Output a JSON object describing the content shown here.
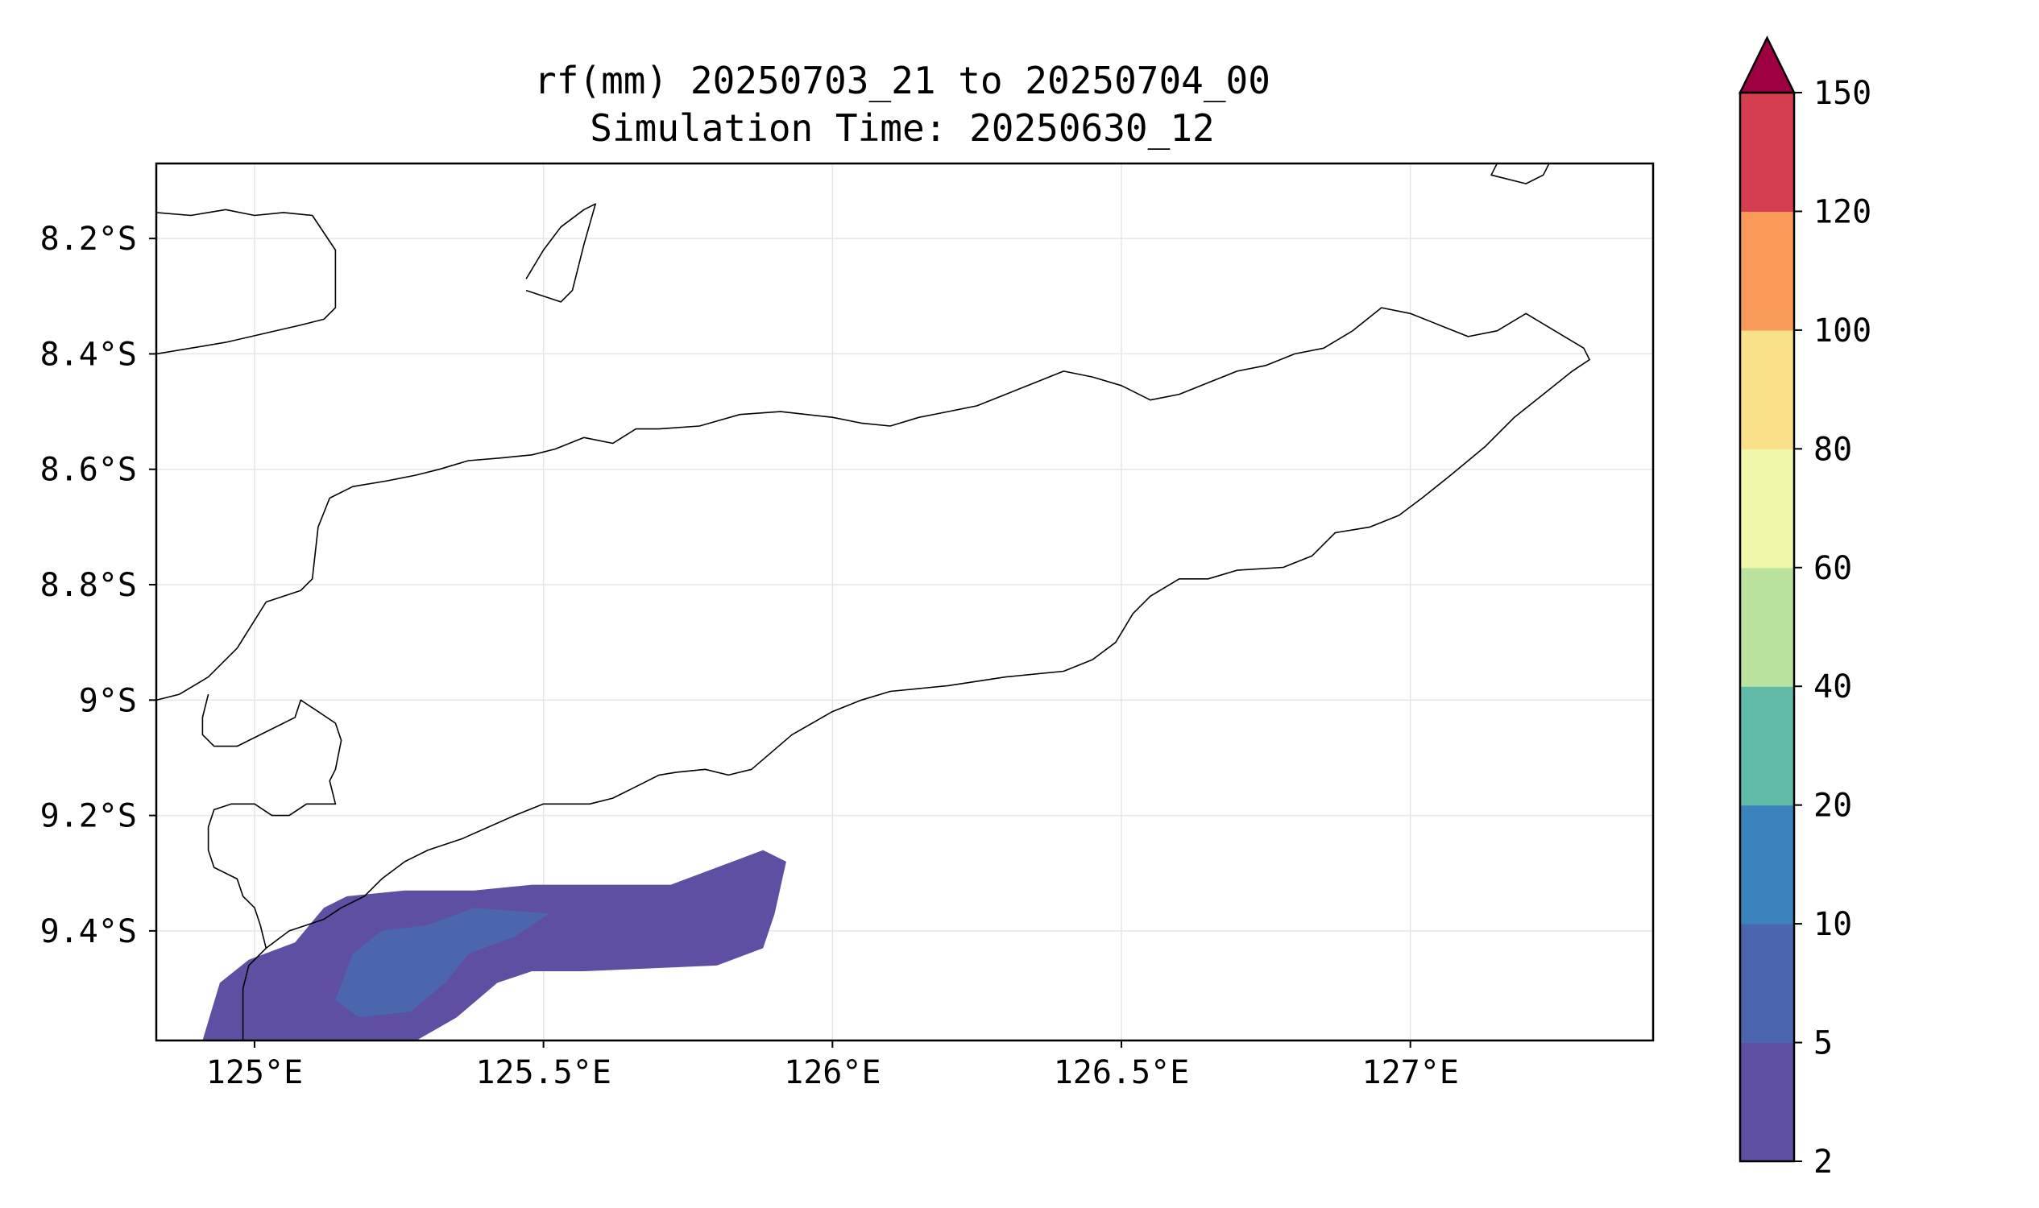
{
  "title": {
    "line1": "rf(mm) 20250703_21 to 20250704_00",
    "line2": "Simulation Time: 20250630_12"
  },
  "map": {
    "lon_range": [
      124.83,
      127.42
    ],
    "lat_range": [
      -9.59,
      -8.07
    ],
    "grid": true,
    "x_ticks": [
      {
        "value": 125.0,
        "label": "125°E"
      },
      {
        "value": 125.5,
        "label": "125.5°E"
      },
      {
        "value": 126.0,
        "label": "126°E"
      },
      {
        "value": 126.5,
        "label": "126.5°E"
      },
      {
        "value": 127.0,
        "label": "127°E"
      }
    ],
    "y_ticks": [
      {
        "value": -8.2,
        "label": "8.2°S"
      },
      {
        "value": -8.4,
        "label": "8.4°S"
      },
      {
        "value": -8.6,
        "label": "8.6°S"
      },
      {
        "value": -8.8,
        "label": "8.8°S"
      },
      {
        "value": -9.0,
        "label": "9°S"
      },
      {
        "value": -9.2,
        "label": "9.2°S"
      },
      {
        "value": -9.4,
        "label": "9.4°S"
      }
    ]
  },
  "colorbar": {
    "extend": "max",
    "extend_color": "#9e0142",
    "levels": [
      2,
      5,
      10,
      20,
      40,
      60,
      80,
      100,
      120,
      150
    ],
    "labels": [
      "2",
      "5",
      "10",
      "20",
      "40",
      "60",
      "80",
      "100",
      "120",
      "150"
    ],
    "colors": [
      "#5e4fa2",
      "#4b66ad",
      "#3a83bd",
      "#60bba9",
      "#bbe3a0",
      "#f1f7a9",
      "#fbe08a",
      "#f99b58",
      "#d53e4f"
    ]
  },
  "chart_data": {
    "type": "heatmap",
    "variable": "rf(mm)",
    "title": "rf(mm) 20250703_21 to 20250704_00",
    "subtitle": "Simulation Time: 20250630_12",
    "xlim": [
      124.83,
      127.42
    ],
    "ylim": [
      -9.59,
      -8.07
    ],
    "rain_regions": [
      {
        "level": "2-5",
        "color": "#5e4fa2",
        "outline_lonlat": [
          [
            124.91,
            -9.59
          ],
          [
            124.94,
            -9.49
          ],
          [
            124.99,
            -9.45
          ],
          [
            125.07,
            -9.42
          ],
          [
            125.12,
            -9.36
          ],
          [
            125.16,
            -9.34
          ],
          [
            125.26,
            -9.33
          ],
          [
            125.38,
            -9.33
          ],
          [
            125.48,
            -9.32
          ],
          [
            125.62,
            -9.32
          ],
          [
            125.72,
            -9.32
          ],
          [
            125.8,
            -9.29
          ],
          [
            125.88,
            -9.26
          ],
          [
            125.92,
            -9.28
          ],
          [
            125.9,
            -9.37
          ],
          [
            125.88,
            -9.43
          ],
          [
            125.8,
            -9.46
          ],
          [
            125.57,
            -9.47
          ],
          [
            125.48,
            -9.47
          ],
          [
            125.42,
            -9.49
          ],
          [
            125.35,
            -9.55
          ],
          [
            125.28,
            -9.59
          ]
        ]
      },
      {
        "level": "5-10",
        "color": "#4b66ad",
        "outline_lonlat": [
          [
            125.14,
            -9.52
          ],
          [
            125.17,
            -9.44
          ],
          [
            125.22,
            -9.4
          ],
          [
            125.3,
            -9.39
          ],
          [
            125.38,
            -9.36
          ],
          [
            125.51,
            -9.37
          ],
          [
            125.45,
            -9.41
          ],
          [
            125.37,
            -9.44
          ],
          [
            125.33,
            -9.49
          ],
          [
            125.27,
            -9.54
          ],
          [
            125.18,
            -9.55
          ]
        ]
      }
    ],
    "coastlines_lonlat": [
      [
        [
          124.83,
          -8.155
        ],
        [
          124.89,
          -8.16
        ],
        [
          124.95,
          -8.15
        ],
        [
          125.0,
          -8.16
        ],
        [
          125.05,
          -8.155
        ],
        [
          125.1,
          -8.16
        ],
        [
          125.14,
          -8.22
        ],
        [
          125.14,
          -8.32
        ],
        [
          125.12,
          -8.34
        ],
        [
          125.08,
          -8.35
        ],
        [
          124.95,
          -8.38
        ],
        [
          124.83,
          -8.4
        ]
      ],
      [
        [
          125.47,
          -8.27
        ],
        [
          125.5,
          -8.22
        ],
        [
          125.53,
          -8.18
        ],
        [
          125.57,
          -8.15
        ],
        [
          125.59,
          -8.14
        ],
        [
          125.57,
          -8.21
        ],
        [
          125.55,
          -8.29
        ],
        [
          125.53,
          -8.31
        ],
        [
          125.47,
          -8.29
        ]
      ],
      [
        [
          127.15,
          -8.07
        ],
        [
          127.14,
          -8.09
        ],
        [
          127.2,
          -8.105
        ],
        [
          127.23,
          -8.09
        ],
        [
          127.24,
          -8.07
        ]
      ],
      [
        [
          124.83,
          -9.0
        ],
        [
          124.87,
          -8.99
        ],
        [
          124.92,
          -8.96
        ],
        [
          124.97,
          -8.91
        ],
        [
          125.02,
          -8.83
        ],
        [
          125.08,
          -8.81
        ],
        [
          125.1,
          -8.79
        ],
        [
          125.11,
          -8.7
        ],
        [
          125.13,
          -8.65
        ],
        [
          125.17,
          -8.63
        ],
        [
          125.23,
          -8.62
        ],
        [
          125.28,
          -8.61
        ],
        [
          125.32,
          -8.6
        ],
        [
          125.37,
          -8.585
        ],
        [
          125.43,
          -8.58
        ],
        [
          125.48,
          -8.575
        ],
        [
          125.52,
          -8.565
        ],
        [
          125.57,
          -8.545
        ],
        [
          125.62,
          -8.555
        ],
        [
          125.66,
          -8.53
        ],
        [
          125.7,
          -8.53
        ],
        [
          125.77,
          -8.525
        ],
        [
          125.84,
          -8.505
        ],
        [
          125.91,
          -8.5
        ],
        [
          126.0,
          -8.51
        ],
        [
          126.05,
          -8.52
        ],
        [
          126.1,
          -8.525
        ],
        [
          126.15,
          -8.51
        ],
        [
          126.2,
          -8.5
        ],
        [
          126.25,
          -8.49
        ],
        [
          126.3,
          -8.47
        ],
        [
          126.35,
          -8.45
        ],
        [
          126.4,
          -8.43
        ],
        [
          126.45,
          -8.44
        ],
        [
          126.5,
          -8.455
        ],
        [
          126.55,
          -8.48
        ],
        [
          126.6,
          -8.47
        ],
        [
          126.65,
          -8.45
        ],
        [
          126.7,
          -8.43
        ],
        [
          126.75,
          -8.42
        ],
        [
          126.8,
          -8.4
        ],
        [
          126.85,
          -8.39
        ],
        [
          126.9,
          -8.36
        ],
        [
          126.95,
          -8.32
        ],
        [
          127.0,
          -8.33
        ],
        [
          127.05,
          -8.35
        ],
        [
          127.1,
          -8.37
        ],
        [
          127.15,
          -8.36
        ],
        [
          127.2,
          -8.33
        ],
        [
          127.25,
          -8.36
        ],
        [
          127.3,
          -8.39
        ],
        [
          127.31,
          -8.41
        ],
        [
          127.28,
          -8.43
        ],
        [
          127.23,
          -8.47
        ],
        [
          127.18,
          -8.51
        ],
        [
          127.13,
          -8.56
        ],
        [
          127.07,
          -8.61
        ],
        [
          127.02,
          -8.65
        ],
        [
          126.98,
          -8.68
        ],
        [
          126.93,
          -8.7
        ],
        [
          126.87,
          -8.71
        ],
        [
          126.83,
          -8.75
        ],
        [
          126.78,
          -8.77
        ],
        [
          126.7,
          -8.775
        ],
        [
          126.65,
          -8.79
        ],
        [
          126.6,
          -8.79
        ],
        [
          126.55,
          -8.82
        ],
        [
          126.52,
          -8.85
        ],
        [
          126.49,
          -8.9
        ],
        [
          126.45,
          -8.93
        ],
        [
          126.4,
          -8.95
        ],
        [
          126.3,
          -8.96
        ],
        [
          126.2,
          -8.975
        ],
        [
          126.1,
          -8.985
        ],
        [
          126.05,
          -9.0
        ],
        [
          126.0,
          -9.02
        ],
        [
          125.93,
          -9.06
        ],
        [
          125.86,
          -9.12
        ],
        [
          125.82,
          -9.13
        ],
        [
          125.78,
          -9.12
        ],
        [
          125.73,
          -9.125
        ],
        [
          125.7,
          -9.13
        ],
        [
          125.66,
          -9.15
        ],
        [
          125.62,
          -9.17
        ],
        [
          125.58,
          -9.18
        ],
        [
          125.55,
          -9.18
        ],
        [
          125.5,
          -9.18
        ],
        [
          125.45,
          -9.2
        ],
        [
          125.36,
          -9.24
        ],
        [
          125.3,
          -9.26
        ],
        [
          125.26,
          -9.28
        ],
        [
          125.22,
          -9.31
        ],
        [
          125.19,
          -9.34
        ],
        [
          125.15,
          -9.36
        ],
        [
          125.12,
          -9.38
        ],
        [
          125.09,
          -9.39
        ],
        [
          125.06,
          -9.4
        ],
        [
          125.02,
          -9.43
        ],
        [
          124.99,
          -9.46
        ],
        [
          124.98,
          -9.5
        ],
        [
          124.98,
          -9.59
        ]
      ],
      [
        [
          124.92,
          -8.99
        ],
        [
          124.91,
          -9.03
        ],
        [
          124.91,
          -9.06
        ],
        [
          124.93,
          -9.08
        ],
        [
          124.97,
          -9.08
        ],
        [
          125.03,
          -9.05
        ],
        [
          125.07,
          -9.03
        ],
        [
          125.08,
          -9.0
        ],
        [
          125.11,
          -9.02
        ],
        [
          125.14,
          -9.04
        ],
        [
          125.15,
          -9.07
        ],
        [
          125.14,
          -9.12
        ],
        [
          125.13,
          -9.14
        ],
        [
          125.14,
          -9.18
        ],
        [
          125.12,
          -9.18
        ],
        [
          125.09,
          -9.18
        ],
        [
          125.06,
          -9.2
        ],
        [
          125.03,
          -9.2
        ],
        [
          125.0,
          -9.18
        ],
        [
          124.96,
          -9.18
        ],
        [
          124.93,
          -9.19
        ],
        [
          124.92,
          -9.22
        ],
        [
          124.92,
          -9.26
        ],
        [
          124.93,
          -9.29
        ],
        [
          124.97,
          -9.31
        ],
        [
          124.98,
          -9.34
        ],
        [
          125.0,
          -9.36
        ],
        [
          125.01,
          -9.39
        ],
        [
          125.02,
          -9.43
        ]
      ]
    ]
  }
}
